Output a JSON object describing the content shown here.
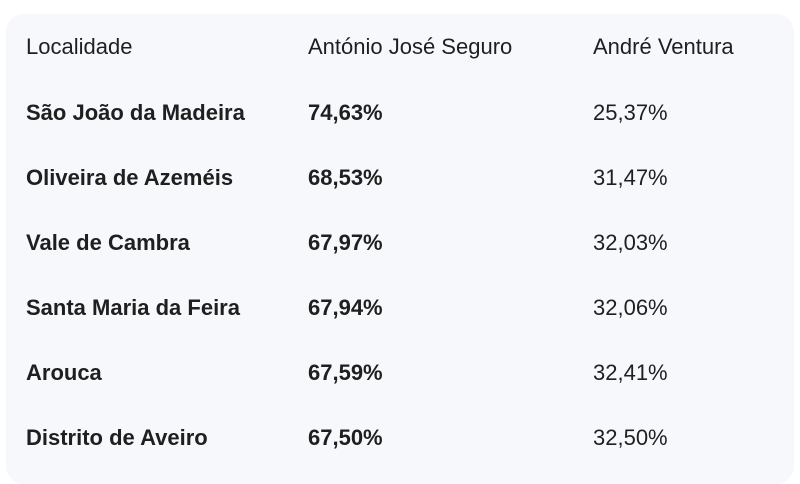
{
  "table": {
    "headers": {
      "locality": "Localidade",
      "seguro": "António José Seguro",
      "ventura": "André Ventura"
    },
    "rows": [
      {
        "locality": "São João da Madeira",
        "seguro": "74,63%",
        "ventura": "25,37%"
      },
      {
        "locality": "Oliveira de Azeméis",
        "seguro": "68,53%",
        "ventura": "31,47%"
      },
      {
        "locality": "Vale de Cambra",
        "seguro": "67,97%",
        "ventura": "32,03%"
      },
      {
        "locality": "Santa Maria da Feira",
        "seguro": "67,94%",
        "ventura": "32,06%"
      },
      {
        "locality": "Arouca",
        "seguro": "67,59%",
        "ventura": "32,41%"
      },
      {
        "locality": "Distrito de Aveiro",
        "seguro": "67,50%",
        "ventura": "32,50%"
      }
    ]
  }
}
